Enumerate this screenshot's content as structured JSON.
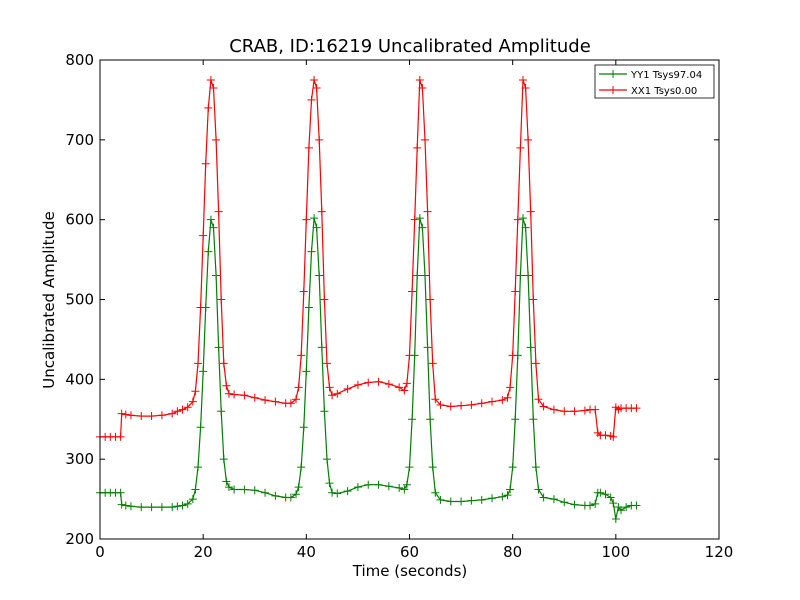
{
  "chart_data": {
    "type": "line",
    "title": "CRAB, ID:16219 Uncalibrated Amplitude",
    "xlabel": "Time (seconds)",
    "ylabel": "Uncalibrated Amplitude",
    "xlim": [
      0,
      120
    ],
    "ylim": [
      200,
      800
    ],
    "xticks": [
      "0",
      "20",
      "40",
      "60",
      "80",
      "100",
      "120"
    ],
    "yticks": [
      "200",
      "300",
      "400",
      "500",
      "600",
      "700",
      "800"
    ],
    "grid": false,
    "legend_position": "top-right",
    "marker": "+",
    "series": [
      {
        "name": "YY1 Tsys97.04",
        "color": "#008000",
        "points": [
          [
            0,
            258
          ],
          [
            1,
            258
          ],
          [
            2,
            258
          ],
          [
            3,
            258
          ],
          [
            4,
            258
          ],
          [
            4.2,
            243
          ],
          [
            5,
            242
          ],
          [
            6,
            241
          ],
          [
            8,
            240
          ],
          [
            10,
            240
          ],
          [
            12,
            240
          ],
          [
            14,
            240
          ],
          [
            15,
            241
          ],
          [
            16,
            242
          ],
          [
            17,
            244
          ],
          [
            18,
            250
          ],
          [
            18.5,
            262
          ],
          [
            19,
            290
          ],
          [
            19.5,
            340
          ],
          [
            20,
            410
          ],
          [
            20.5,
            490
          ],
          [
            21,
            560
          ],
          [
            21.5,
            600
          ],
          [
            22,
            590
          ],
          [
            22.5,
            530
          ],
          [
            23,
            440
          ],
          [
            23.5,
            360
          ],
          [
            24,
            300
          ],
          [
            24.5,
            272
          ],
          [
            25,
            265
          ],
          [
            26,
            262
          ],
          [
            28,
            262
          ],
          [
            30,
            261
          ],
          [
            32,
            258
          ],
          [
            34,
            254
          ],
          [
            36,
            252
          ],
          [
            37,
            252
          ],
          [
            38,
            256
          ],
          [
            38.5,
            265
          ],
          [
            39,
            290
          ],
          [
            39.5,
            340
          ],
          [
            40,
            410
          ],
          [
            40.5,
            490
          ],
          [
            41,
            560
          ],
          [
            41.5,
            602
          ],
          [
            42,
            590
          ],
          [
            42.5,
            530
          ],
          [
            43,
            440
          ],
          [
            43.5,
            360
          ],
          [
            44,
            300
          ],
          [
            44.5,
            270
          ],
          [
            45,
            258
          ],
          [
            46,
            257
          ],
          [
            48,
            260
          ],
          [
            50,
            265
          ],
          [
            52,
            268
          ],
          [
            54,
            268
          ],
          [
            56,
            266
          ],
          [
            58,
            264
          ],
          [
            59,
            262
          ],
          [
            59.5,
            268
          ],
          [
            60,
            290
          ],
          [
            60.5,
            350
          ],
          [
            61,
            430
          ],
          [
            61.5,
            530
          ],
          [
            62,
            602
          ],
          [
            62.5,
            590
          ],
          [
            63,
            530
          ],
          [
            63.5,
            440
          ],
          [
            64,
            350
          ],
          [
            64.5,
            290
          ],
          [
            65,
            258
          ],
          [
            66,
            249
          ],
          [
            68,
            247
          ],
          [
            70,
            247
          ],
          [
            72,
            248
          ],
          [
            74,
            249
          ],
          [
            76,
            251
          ],
          [
            78,
            253
          ],
          [
            79,
            255
          ],
          [
            79.5,
            262
          ],
          [
            80,
            290
          ],
          [
            80.5,
            350
          ],
          [
            81,
            430
          ],
          [
            81.5,
            530
          ],
          [
            82,
            602
          ],
          [
            82.5,
            590
          ],
          [
            83,
            530
          ],
          [
            83.5,
            440
          ],
          [
            84,
            350
          ],
          [
            84.5,
            290
          ],
          [
            85,
            262
          ],
          [
            86,
            252
          ],
          [
            88,
            250
          ],
          [
            90,
            246
          ],
          [
            92,
            243
          ],
          [
            94,
            242
          ],
          [
            95,
            242
          ],
          [
            96,
            244
          ],
          [
            96.5,
            258
          ],
          [
            97,
            258
          ],
          [
            98,
            256
          ],
          [
            99,
            252
          ],
          [
            99.5,
            245
          ],
          [
            100,
            225
          ],
          [
            100.5,
            240
          ],
          [
            101,
            236
          ],
          [
            102,
            240
          ],
          [
            103,
            242
          ],
          [
            104,
            242
          ]
        ]
      },
      {
        "name": "XX1 Tsys0.00",
        "color": "#ff0000",
        "points": [
          [
            0,
            328
          ],
          [
            1,
            328
          ],
          [
            2,
            328
          ],
          [
            3,
            328
          ],
          [
            4,
            328
          ],
          [
            4.2,
            357
          ],
          [
            5,
            356
          ],
          [
            6,
            355
          ],
          [
            8,
            354
          ],
          [
            10,
            354
          ],
          [
            12,
            355
          ],
          [
            14,
            357
          ],
          [
            15,
            360
          ],
          [
            16,
            362
          ],
          [
            17,
            365
          ],
          [
            18,
            372
          ],
          [
            18.5,
            385
          ],
          [
            19,
            420
          ],
          [
            19.5,
            490
          ],
          [
            20,
            580
          ],
          [
            20.5,
            670
          ],
          [
            21,
            740
          ],
          [
            21.5,
            775
          ],
          [
            22,
            765
          ],
          [
            22.5,
            700
          ],
          [
            23,
            610
          ],
          [
            23.5,
            500
          ],
          [
            24,
            420
          ],
          [
            24.5,
            392
          ],
          [
            25,
            382
          ],
          [
            26,
            381
          ],
          [
            28,
            380
          ],
          [
            30,
            377
          ],
          [
            32,
            374
          ],
          [
            34,
            372
          ],
          [
            36,
            370
          ],
          [
            37,
            370
          ],
          [
            38,
            375
          ],
          [
            38.5,
            390
          ],
          [
            39,
            430
          ],
          [
            39.5,
            510
          ],
          [
            40,
            600
          ],
          [
            40.5,
            690
          ],
          [
            41,
            750
          ],
          [
            41.5,
            775
          ],
          [
            42,
            765
          ],
          [
            42.5,
            700
          ],
          [
            43,
            610
          ],
          [
            43.5,
            500
          ],
          [
            44,
            420
          ],
          [
            44.5,
            390
          ],
          [
            45,
            380
          ],
          [
            46,
            382
          ],
          [
            48,
            388
          ],
          [
            50,
            393
          ],
          [
            52,
            396
          ],
          [
            54,
            397
          ],
          [
            56,
            394
          ],
          [
            58,
            390
          ],
          [
            59,
            386
          ],
          [
            59.5,
            395
          ],
          [
            60,
            430
          ],
          [
            60.5,
            510
          ],
          [
            61,
            600
          ],
          [
            61.5,
            690
          ],
          [
            62,
            775
          ],
          [
            62.5,
            765
          ],
          [
            63,
            700
          ],
          [
            63.5,
            610
          ],
          [
            64,
            500
          ],
          [
            64.5,
            420
          ],
          [
            65,
            375
          ],
          [
            66,
            368
          ],
          [
            68,
            366
          ],
          [
            70,
            367
          ],
          [
            72,
            368
          ],
          [
            74,
            370
          ],
          [
            76,
            372
          ],
          [
            78,
            374
          ],
          [
            79,
            377
          ],
          [
            79.5,
            390
          ],
          [
            80,
            430
          ],
          [
            80.5,
            510
          ],
          [
            81,
            600
          ],
          [
            81.5,
            690
          ],
          [
            82,
            775
          ],
          [
            82.5,
            765
          ],
          [
            83,
            700
          ],
          [
            83.5,
            610
          ],
          [
            84,
            500
          ],
          [
            84.5,
            420
          ],
          [
            85,
            375
          ],
          [
            86,
            366
          ],
          [
            88,
            362
          ],
          [
            90,
            360
          ],
          [
            92,
            360
          ],
          [
            94,
            361
          ],
          [
            95,
            362
          ],
          [
            96,
            362
          ],
          [
            96.5,
            333
          ],
          [
            97,
            330
          ],
          [
            98,
            330
          ],
          [
            99,
            329
          ],
          [
            99.5,
            328
          ],
          [
            100,
            365
          ],
          [
            100.5,
            362
          ],
          [
            101,
            364
          ],
          [
            102,
            364
          ],
          [
            103,
            364
          ],
          [
            104,
            364
          ]
        ]
      }
    ]
  }
}
